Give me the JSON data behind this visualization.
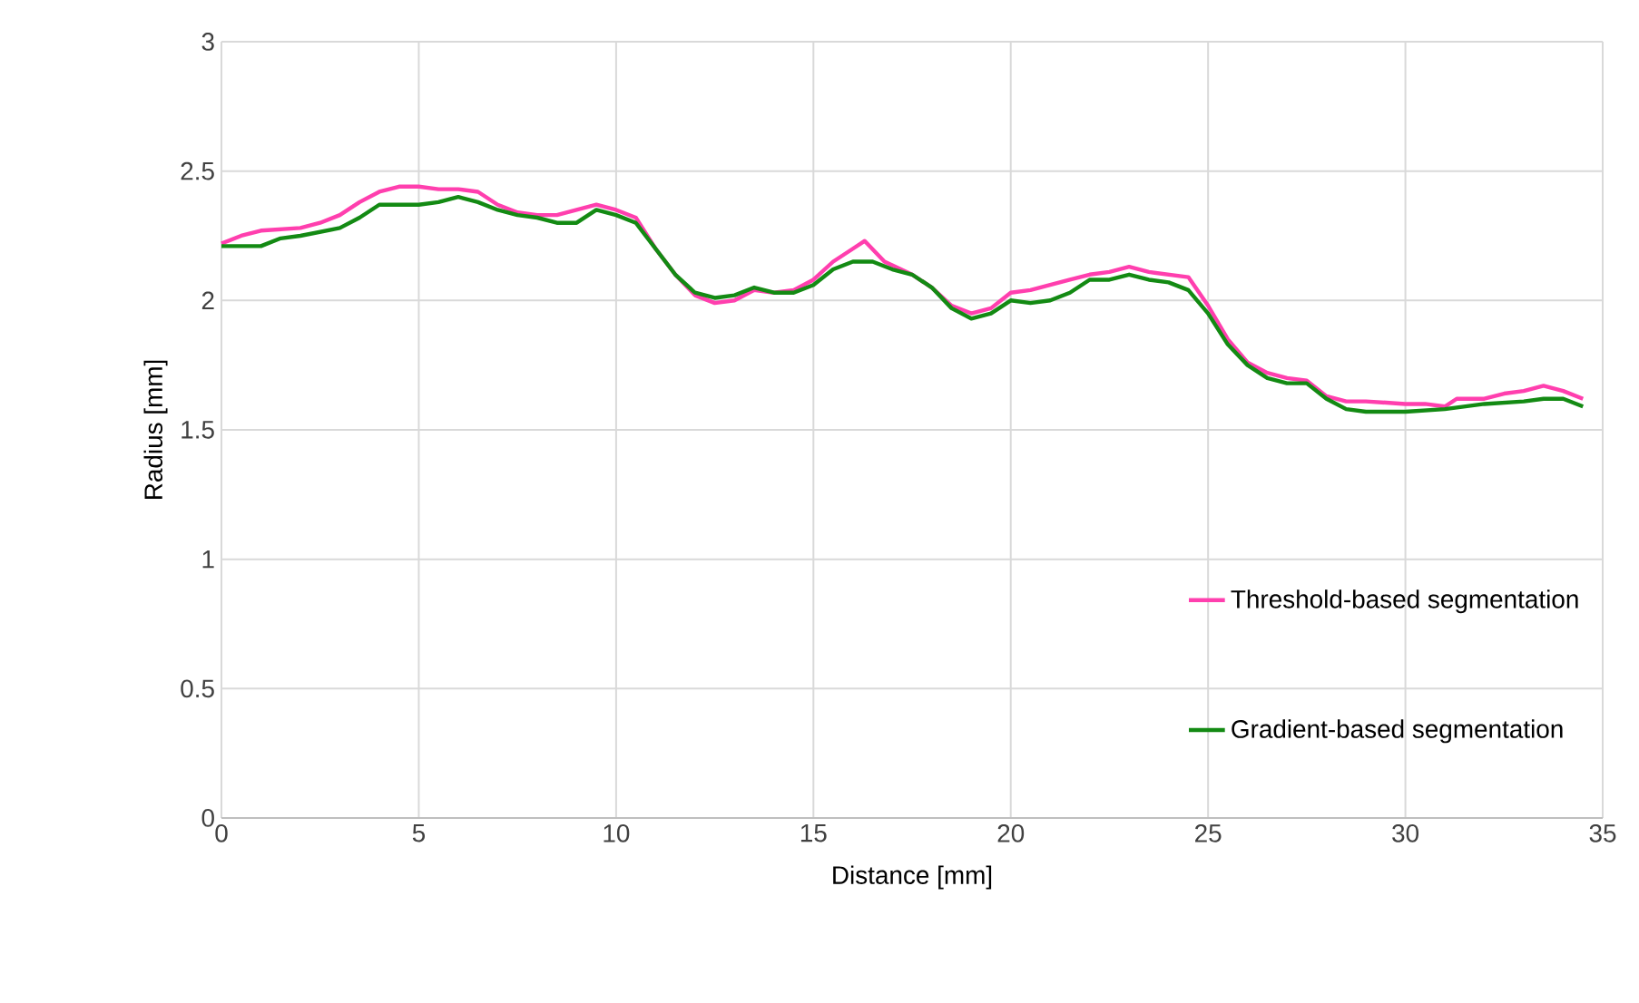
{
  "chart_data": {
    "type": "line",
    "xlabel": "Distance [mm]",
    "ylabel": "Radius [mm]",
    "xlim": [
      0,
      35
    ],
    "ylim": [
      0,
      3
    ],
    "xticks": [
      0,
      5,
      10,
      15,
      20,
      25,
      30,
      35
    ],
    "yticks": [
      0,
      {
        "value": 0.5,
        "label": "0.5"
      },
      1,
      {
        "value": 1.5,
        "label": "1.5"
      },
      2,
      {
        "value": 2.5,
        "label": "2.5"
      },
      3
    ],
    "grid": true,
    "legend": "bottom right",
    "marker": "none",
    "line_style": "solid",
    "series": [
      {
        "name": "Threshold-based segmentation",
        "color": "#ff3fae",
        "x": [
          0,
          0.5,
          1,
          2,
          2.5,
          3,
          3.5,
          4,
          4.5,
          5,
          5.5,
          6,
          6.5,
          7,
          7.5,
          8,
          8.5,
          9,
          9.5,
          10,
          10.5,
          11,
          11.5,
          12,
          12.5,
          13,
          13.5,
          14,
          14.5,
          15,
          15.5,
          16,
          16.3,
          16.8,
          17.5,
          18,
          18.5,
          19,
          19.5,
          20,
          20.5,
          21,
          21.5,
          22,
          22.5,
          23,
          23.5,
          24,
          24.5,
          25,
          25.5,
          26,
          26.5,
          27,
          27.5,
          28,
          28.5,
          29,
          30,
          30.5,
          31,
          31.3,
          32,
          32.5,
          33,
          33.5,
          34,
          34.5
        ],
        "values": [
          2.22,
          2.25,
          2.27,
          2.28,
          2.3,
          2.33,
          2.38,
          2.42,
          2.44,
          2.44,
          2.43,
          2.43,
          2.42,
          2.37,
          2.34,
          2.33,
          2.33,
          2.35,
          2.37,
          2.35,
          2.32,
          2.2,
          2.1,
          2.02,
          1.99,
          2.0,
          2.04,
          2.03,
          2.04,
          2.08,
          2.15,
          2.2,
          2.23,
          2.15,
          2.1,
          2.05,
          1.98,
          1.95,
          1.97,
          2.03,
          2.04,
          2.06,
          2.08,
          2.1,
          2.11,
          2.13,
          2.11,
          2.1,
          2.09,
          1.98,
          1.85,
          1.76,
          1.72,
          1.7,
          1.69,
          1.63,
          1.61,
          1.61,
          1.6,
          1.6,
          1.59,
          1.62,
          1.62,
          1.64,
          1.65,
          1.67,
          1.65,
          1.62
        ]
      },
      {
        "name": "Gradient-based segmentation",
        "color": "#138a13",
        "x": [
          0,
          1,
          1.5,
          2,
          3,
          3.5,
          4,
          5,
          5.5,
          6,
          6.5,
          7,
          7.5,
          8,
          8.5,
          9,
          9.5,
          10,
          10.5,
          11,
          11.5,
          12,
          12.5,
          13,
          13.5,
          14,
          14.5,
          15,
          15.5,
          16,
          16.5,
          17,
          17.5,
          18,
          18.5,
          19,
          19.5,
          20,
          20.5,
          21,
          21.5,
          22,
          22.5,
          23,
          23.5,
          24,
          24.5,
          25,
          25.5,
          26,
          26.5,
          27,
          27.5,
          28,
          28.5,
          29,
          30,
          31,
          32,
          33,
          33.5,
          34,
          34.5
        ],
        "values": [
          2.21,
          2.21,
          2.24,
          2.25,
          2.28,
          2.32,
          2.37,
          2.37,
          2.38,
          2.4,
          2.38,
          2.35,
          2.33,
          2.32,
          2.3,
          2.3,
          2.35,
          2.33,
          2.3,
          2.2,
          2.1,
          2.03,
          2.01,
          2.02,
          2.05,
          2.03,
          2.03,
          2.06,
          2.12,
          2.15,
          2.15,
          2.12,
          2.1,
          2.05,
          1.97,
          1.93,
          1.95,
          2.0,
          1.99,
          2.0,
          2.03,
          2.08,
          2.08,
          2.1,
          2.08,
          2.07,
          2.04,
          1.95,
          1.83,
          1.75,
          1.7,
          1.68,
          1.68,
          1.62,
          1.58,
          1.57,
          1.57,
          1.58,
          1.6,
          1.61,
          1.62,
          1.62,
          1.59
        ]
      }
    ]
  }
}
